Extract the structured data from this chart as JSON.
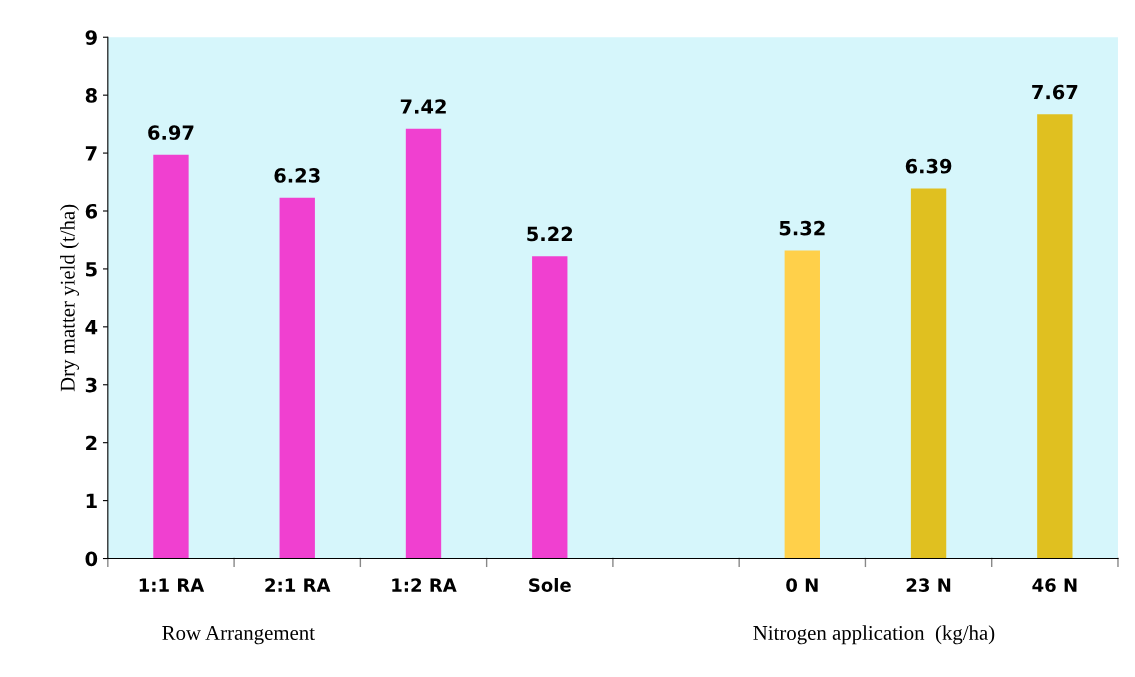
{
  "chart_data": {
    "type": "bar",
    "ylabel": "Dry matter yield (t/ha)",
    "categories": [
      "1:1 RA",
      "2:1 RA",
      "1:2 RA",
      "Sole",
      null,
      "0 N",
      "23 N",
      "46 N"
    ],
    "values": [
      6.97,
      6.23,
      7.42,
      5.22,
      null,
      5.32,
      6.39,
      7.67
    ],
    "colors": [
      "#f040d0",
      "#f040d0",
      "#f040d0",
      "#f040d0",
      "#ffffff",
      "#ffd04a",
      "#e0c020",
      "#e0c020"
    ],
    "ylim": [
      0,
      9
    ],
    "yticks": [
      0,
      1,
      2,
      3,
      4,
      5,
      6,
      7,
      8,
      9
    ],
    "data_labels": true,
    "grid": false,
    "legend": false,
    "annotations": [
      "Row Arrangement",
      "Nitrogen application  (kg/ha)"
    ]
  }
}
